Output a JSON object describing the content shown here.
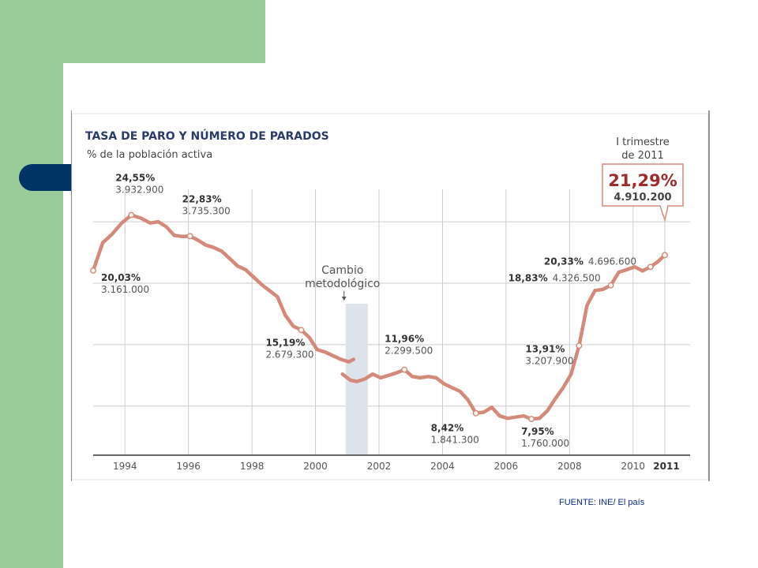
{
  "source_label": "FUENTE:  INE/ El país",
  "chart_data": {
    "type": "line",
    "title": "TASA DE PARO Y NÚMERO DE PARADOS",
    "subtitle": "% de la población activa",
    "x_ticks": [
      "1994",
      "1996",
      "1998",
      "2000",
      "2002",
      "2004",
      "2006",
      "2008",
      "2010",
      "2011"
    ],
    "xlim": [
      1993,
      2011
    ],
    "ylim": [
      5,
      26
    ],
    "grid": true,
    "line_color": "#d48a7a",
    "series": [
      {
        "segment": "before",
        "x": [
          1993.0,
          1993.3,
          1993.6,
          1993.9,
          1994.2,
          1994.5,
          1994.8,
          1995.05,
          1995.3,
          1995.55,
          1995.8,
          1996.05,
          1996.3,
          1996.55,
          1996.8,
          1997.05,
          1997.3,
          1997.55,
          1997.8,
          1998.05,
          1998.3,
          1998.55,
          1998.8,
          1999.05,
          1999.3,
          1999.55,
          1999.8,
          2000.05,
          2000.3,
          2000.55,
          2000.8,
          2001.05,
          2001.2
        ],
        "y": [
          20.03,
          22.3,
          23.0,
          23.9,
          24.55,
          24.3,
          23.9,
          24.0,
          23.6,
          22.9,
          22.8,
          22.83,
          22.5,
          22.1,
          21.9,
          21.6,
          21.0,
          20.4,
          20.1,
          19.5,
          18.9,
          18.4,
          17.9,
          16.4,
          15.5,
          15.19,
          14.6,
          13.6,
          13.4,
          13.1,
          12.8,
          12.6,
          12.8
        ]
      },
      {
        "segment": "after",
        "x": [
          2000.85,
          2001.1,
          2001.3,
          2001.55,
          2001.8,
          2002.05,
          2002.3,
          2002.55,
          2002.8,
          2003.05,
          2003.3,
          2003.55,
          2003.8,
          2004.05,
          2004.3,
          2004.55,
          2004.8,
          2005.05,
          2005.3,
          2005.55,
          2005.8,
          2006.05,
          2006.3,
          2006.55,
          2006.8,
          2007.05,
          2007.3,
          2007.55,
          2007.8,
          2008.05,
          2008.3,
          2008.55,
          2008.8,
          2009.05,
          2009.3,
          2009.55,
          2009.8,
          2010.05,
          2010.3,
          2010.55,
          2010.8,
          2011.0
        ],
        "y": [
          11.6,
          11.1,
          11.0,
          11.2,
          11.6,
          11.3,
          11.5,
          11.7,
          11.96,
          11.4,
          11.3,
          11.4,
          11.3,
          10.8,
          10.5,
          10.2,
          9.5,
          8.42,
          8.5,
          8.9,
          8.2,
          8.0,
          8.1,
          8.2,
          7.95,
          8.0,
          8.6,
          9.6,
          10.5,
          11.6,
          13.91,
          17.2,
          18.4,
          18.5,
          18.83,
          19.9,
          20.1,
          20.33,
          20.0,
          20.33,
          20.8,
          21.29
        ]
      }
    ],
    "annotations": [
      {
        "label": "24,55%",
        "sub": "3.932.900",
        "x": 1994.2,
        "y": 24.55
      },
      {
        "label": "20,03%",
        "sub": "3.161.000",
        "x": 1993.0,
        "y": 20.03
      },
      {
        "label": "22,83%",
        "sub": "3.735.300",
        "x": 1996.05,
        "y": 22.83
      },
      {
        "label": "15,19%",
        "sub": "2.679.300",
        "x": 1999.55,
        "y": 15.19
      },
      {
        "label": "11,96%",
        "sub": "2.299.500",
        "x": 2002.8,
        "y": 11.96
      },
      {
        "label": "8,42%",
        "sub": "1.841.300",
        "x": 2005.05,
        "y": 8.42
      },
      {
        "label": "7,95%",
        "sub": "1.760.000",
        "x": 2006.8,
        "y": 7.95
      },
      {
        "label": "13,91%",
        "sub": "3.207.900",
        "x": 2008.3,
        "y": 13.91
      },
      {
        "label": "18,83%",
        "sub": "4.326.500",
        "x": 2009.3,
        "y": 18.83
      },
      {
        "label": "20,33%",
        "sub": "4.696.600",
        "x": 2010.55,
        "y": 20.33
      }
    ],
    "highlight": {
      "header": "I trimestre",
      "header2": "de 2011",
      "value": "21,29%",
      "sub": "4.910.200",
      "x": 2011.0,
      "y": 21.29,
      "color": "#a02a2a"
    },
    "methodology_note": {
      "line1": "Cambio",
      "line2": "metodológico",
      "band": [
        2000.85,
        2001.35
      ]
    },
    "colors": {
      "title": "#2a3a6a",
      "text": "#555555",
      "grid": "#cccccc",
      "band": "#dde3ea"
    }
  }
}
